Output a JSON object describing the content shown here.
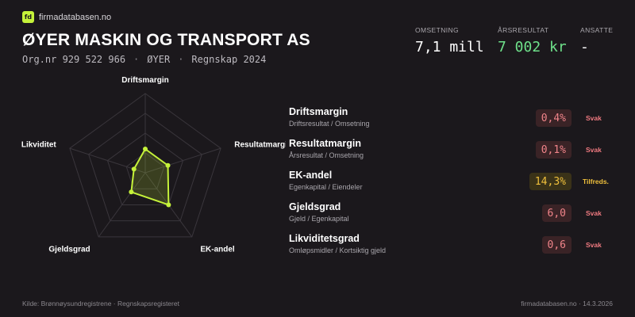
{
  "brand": {
    "logo": "fd",
    "name": "firmadatabasen.no",
    "accent": "#c5f23a"
  },
  "company": {
    "name": "ØYER MASKIN OG TRANSPORT AS",
    "org": "Org.nr 929 522 966",
    "place": "ØYER",
    "period": "Regnskap 2024",
    "separator": "·"
  },
  "kpis": {
    "omsetning": {
      "label": "OMSETNING",
      "value": "7,1 mill"
    },
    "arsresultat": {
      "label": "ÅRSRESULTAT",
      "value": "7 002 kr",
      "color": "#6ee08a"
    },
    "ansatte": {
      "label": "ANSATTE",
      "value": "-"
    }
  },
  "radar": {
    "axes": [
      "Driftsmargin",
      "Resultatmargin",
      "EK-andel",
      "Gjeldsgrad",
      "Likviditet"
    ],
    "scores": [
      0.3,
      0.3,
      0.5,
      0.3,
      0.15
    ],
    "color": "#c5f23a"
  },
  "metrics": [
    {
      "name": "Driftsmargin",
      "formula": "Driftsresultat / Omsetning",
      "value": "0,4%",
      "status": "Svak",
      "level": "weak"
    },
    {
      "name": "Resultatmargin",
      "formula": "Årsresultat / Omsetning",
      "value": "0,1%",
      "status": "Svak",
      "level": "weak"
    },
    {
      "name": "EK-andel",
      "formula": "Egenkapital / Eiendeler",
      "value": "14,3%",
      "status": "Tilfreds.",
      "level": "ok"
    },
    {
      "name": "Gjeldsgrad",
      "formula": "Gjeld / Egenkapital",
      "value": "6,0",
      "status": "Svak",
      "level": "weak"
    },
    {
      "name": "Likviditetsgrad",
      "formula": "Omløpsmidler / Kortsiktig gjeld",
      "value": "0,6",
      "status": "Svak",
      "level": "weak"
    }
  ],
  "footer": {
    "source": "Kilde: Brønnøysundregistrene · Regnskapsregisteret",
    "site_date": "firmadatabasen.no · 14.3.2026"
  }
}
